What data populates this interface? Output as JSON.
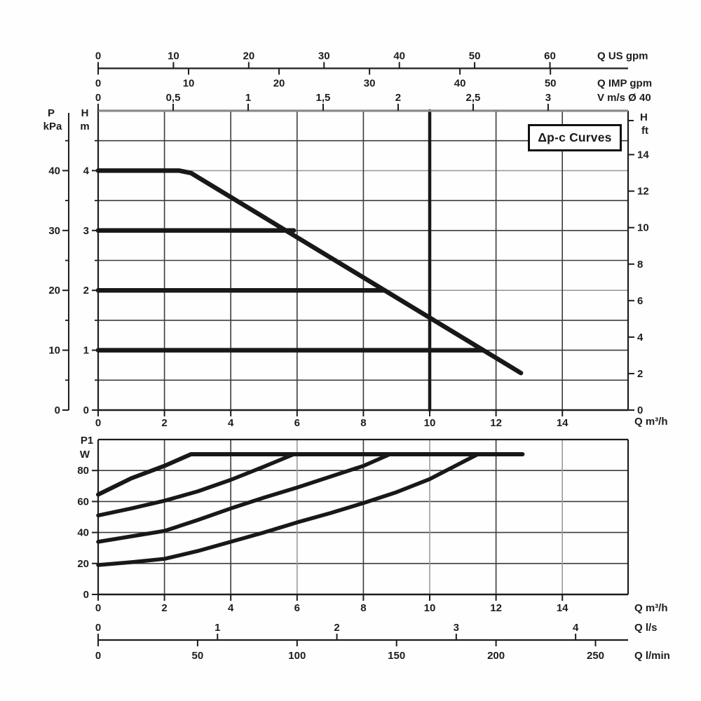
{
  "title_box": "Δp-c Curves",
  "colors": {
    "curve": "#181818",
    "grid_dark": "#3c3c3c",
    "grid_gray": "#9b9b9b",
    "frame": "#1d1d1d",
    "axis_gray": "#8a8a8a",
    "text": "#1d1d1d",
    "background": "#fefefe"
  },
  "chart_data": [
    {
      "type": "line",
      "name": "head-curves",
      "title": "Δp-c Curves",
      "x_axis": {
        "label": "Q m³/h",
        "ticks": [
          0,
          2,
          4,
          6,
          8,
          10,
          12,
          14
        ],
        "range": [
          0,
          16
        ]
      },
      "x_axes_top": [
        {
          "label": "Q US gpm",
          "ticks": [
            0,
            10,
            20,
            30,
            40,
            50,
            60
          ],
          "m3h_per_unit": 0.2271
        },
        {
          "label": "Q IMP gpm",
          "ticks": [
            0,
            10,
            20,
            30,
            40,
            50
          ],
          "m3h_per_unit": 0.2728
        },
        {
          "label": "V m/s Ø 40",
          "tick_labels": [
            "0",
            "0,5",
            "1",
            "1,5",
            "2",
            "2,5",
            "3"
          ],
          "tick_values": [
            0,
            0.5,
            1,
            1.5,
            2,
            2.5,
            3
          ],
          "m3h_per_unit": 4.524
        }
      ],
      "y_axis_left": {
        "label_top": "H",
        "label_unit": "m",
        "ticks": [
          0,
          1,
          2,
          3,
          4
        ],
        "minor_ticks": [
          0.5,
          1.5,
          2.5,
          3.5,
          4.5
        ],
        "range": [
          0,
          5
        ]
      },
      "y_axis_far_left": {
        "label_top": "P",
        "label_unit": "kPa",
        "ticks": [
          0,
          10,
          20,
          30,
          40
        ],
        "minor_ticks": [
          5,
          15,
          25,
          35,
          45
        ],
        "m_per_unit": 0.1
      },
      "y_axis_right": {
        "label_top": "H",
        "label_unit": "ft",
        "ticks": [
          0,
          2,
          4,
          6,
          8,
          10,
          12,
          14
        ],
        "m_per_unit": 0.3048
      },
      "series": [
        {
          "name": "setpoint-h4-max-curve",
          "points": [
            [
              0,
              4
            ],
            [
              2.45,
              4
            ],
            [
              2.8,
              3.96
            ],
            [
              12.75,
              0.62
            ]
          ],
          "width": 6.5
        },
        {
          "name": "setpoint-h3",
          "points": [
            [
              0,
              3
            ],
            [
              5.9,
              3
            ]
          ],
          "width": 6.5
        },
        {
          "name": "setpoint-h2",
          "points": [
            [
              0,
              2
            ],
            [
              8.6,
              2
            ]
          ],
          "width": 6.5
        },
        {
          "name": "setpoint-h1",
          "points": [
            [
              0,
              1
            ],
            [
              11.6,
              1
            ]
          ],
          "width": 6.5
        },
        {
          "name": "duty-line-q10",
          "points": [
            [
              10,
              0
            ],
            [
              10,
              5
            ]
          ],
          "width": 4.5
        }
      ],
      "gridlines": {
        "h_dark": [
          0.5,
          1,
          1.5,
          2.5,
          3,
          3.5,
          4.5
        ],
        "h_gray": [
          2,
          4
        ],
        "v_dark": [
          2,
          4,
          6,
          8,
          12,
          14
        ],
        "v_gray": []
      }
    },
    {
      "type": "line",
      "name": "power-curves",
      "x_axis": {
        "label": "Q m³/h",
        "ticks": [
          0,
          2,
          4,
          6,
          8,
          10,
          12,
          14
        ],
        "range": [
          0,
          16
        ]
      },
      "x_axes_bottom": [
        {
          "label": "Q l/s",
          "ticks": [
            0,
            1,
            2,
            3,
            4
          ],
          "m3h_per_unit": 3.6
        },
        {
          "label": "Q l/min",
          "ticks": [
            0,
            50,
            100,
            150,
            200,
            250
          ],
          "m3h_per_unit": 0.06
        }
      ],
      "y_axis_left": {
        "label_top": "P1",
        "label_unit": "W",
        "ticks": [
          0,
          20,
          40,
          60,
          80
        ],
        "range": [
          0,
          100
        ]
      },
      "series": [
        {
          "name": "power-h4-max",
          "points": [
            [
              0,
              64.5
            ],
            [
              1,
              75
            ],
            [
              2,
              83
            ],
            [
              2.8,
              90.5
            ],
            [
              12.8,
              90.5
            ]
          ],
          "width": 6
        },
        {
          "name": "power-h3",
          "points": [
            [
              0,
              51
            ],
            [
              1,
              55.5
            ],
            [
              2,
              60.5
            ],
            [
              3,
              66.5
            ],
            [
              4,
              74
            ],
            [
              5,
              82.5
            ],
            [
              5.9,
              90.5
            ]
          ],
          "width": 5.5
        },
        {
          "name": "power-h2",
          "points": [
            [
              0,
              34
            ],
            [
              1,
              37.5
            ],
            [
              2,
              41
            ],
            [
              3,
              48
            ],
            [
              4,
              55.5
            ],
            [
              5,
              62.5
            ],
            [
              6,
              69
            ],
            [
              7,
              76
            ],
            [
              8,
              83
            ],
            [
              8.8,
              90.5
            ]
          ],
          "width": 5.5
        },
        {
          "name": "power-h1",
          "points": [
            [
              0,
              19
            ],
            [
              1,
              20.8
            ],
            [
              2,
              23
            ],
            [
              3,
              28
            ],
            [
              4,
              34
            ],
            [
              5,
              40
            ],
            [
              6,
              46.5
            ],
            [
              7,
              52.5
            ],
            [
              8,
              59
            ],
            [
              9,
              66
            ],
            [
              10,
              74.5
            ],
            [
              11.45,
              90.5
            ]
          ],
          "width": 5.5
        }
      ],
      "gridlines": {
        "h_dark": [
          20,
          40,
          60,
          80
        ],
        "h_gray": [],
        "v_dark": [
          2,
          4,
          8,
          12
        ],
        "v_gray": [
          6,
          10,
          14
        ]
      }
    }
  ]
}
